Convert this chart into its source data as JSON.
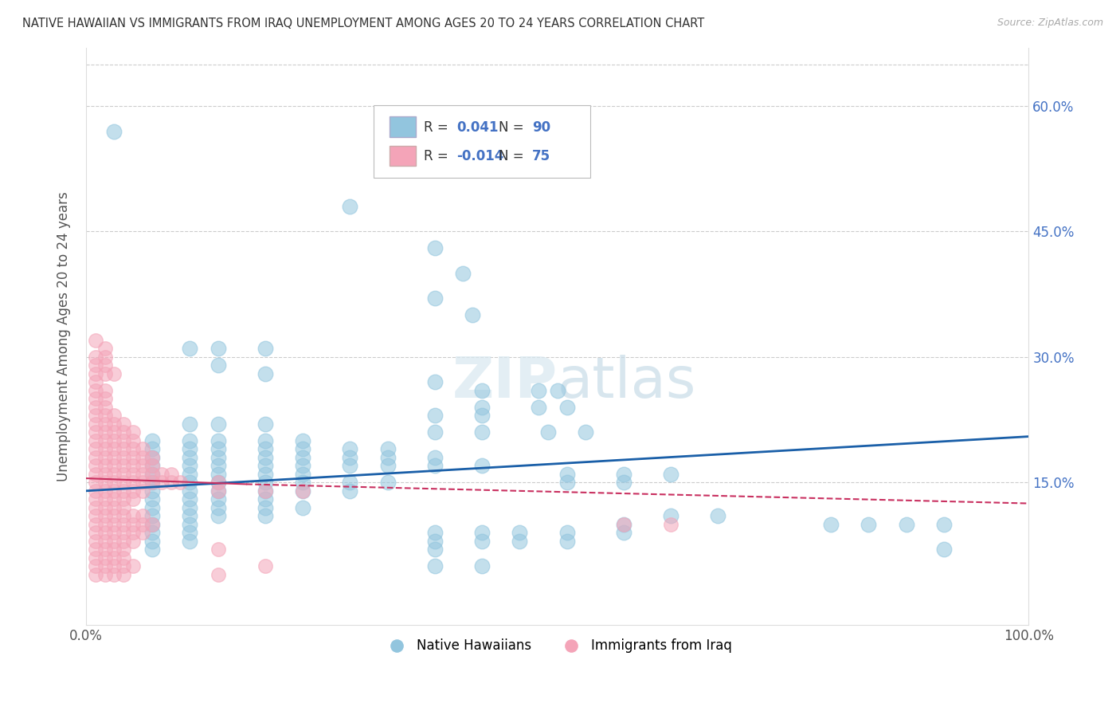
{
  "title": "NATIVE HAWAIIAN VS IMMIGRANTS FROM IRAQ UNEMPLOYMENT AMONG AGES 20 TO 24 YEARS CORRELATION CHART",
  "source": "Source: ZipAtlas.com",
  "ylabel": "Unemployment Among Ages 20 to 24 years",
  "xlim": [
    0,
    100
  ],
  "ylim": [
    -2,
    67
  ],
  "xticks": [
    0,
    20,
    40,
    60,
    80,
    100
  ],
  "xticklabels": [
    "0.0%",
    "",
    "",
    "",
    "",
    "100.0%"
  ],
  "yticks": [
    0,
    15,
    30,
    45,
    60
  ],
  "yticklabels_right": [
    "",
    "15.0%",
    "30.0%",
    "45.0%",
    "60.0%"
  ],
  "blue_R": "0.041",
  "blue_N": "90",
  "pink_R": "-0.014",
  "pink_N": "75",
  "blue_color": "#92c5de",
  "pink_color": "#f4a4b8",
  "blue_line_color": "#1a5fa8",
  "pink_line_color": "#c93060",
  "legend_label_blue": "Native Hawaiians",
  "legend_label_pink": "Immigrants from Iraq",
  "blue_trend": [
    0,
    100,
    14.0,
    20.5
  ],
  "pink_trend_solid": [
    0,
    17,
    15.5,
    14.8
  ],
  "pink_trend_dashed": [
    17,
    100,
    14.8,
    12.5
  ],
  "blue_dots": [
    [
      3,
      57
    ],
    [
      28,
      48
    ],
    [
      37,
      43
    ],
    [
      40,
      40
    ],
    [
      37,
      37
    ],
    [
      41,
      35
    ],
    [
      11,
      31
    ],
    [
      14,
      31
    ],
    [
      19,
      31
    ],
    [
      14,
      29
    ],
    [
      19,
      28
    ],
    [
      37,
      27
    ],
    [
      42,
      26
    ],
    [
      48,
      26
    ],
    [
      50,
      26
    ],
    [
      42,
      24
    ],
    [
      48,
      24
    ],
    [
      51,
      24
    ],
    [
      37,
      23
    ],
    [
      42,
      23
    ],
    [
      11,
      22
    ],
    [
      14,
      22
    ],
    [
      19,
      22
    ],
    [
      37,
      21
    ],
    [
      42,
      21
    ],
    [
      49,
      21
    ],
    [
      53,
      21
    ],
    [
      7,
      20
    ],
    [
      11,
      20
    ],
    [
      14,
      20
    ],
    [
      19,
      20
    ],
    [
      23,
      20
    ],
    [
      7,
      19
    ],
    [
      11,
      19
    ],
    [
      14,
      19
    ],
    [
      19,
      19
    ],
    [
      23,
      19
    ],
    [
      28,
      19
    ],
    [
      32,
      19
    ],
    [
      7,
      18
    ],
    [
      11,
      18
    ],
    [
      14,
      18
    ],
    [
      19,
      18
    ],
    [
      23,
      18
    ],
    [
      28,
      18
    ],
    [
      32,
      18
    ],
    [
      37,
      18
    ],
    [
      7,
      17
    ],
    [
      11,
      17
    ],
    [
      14,
      17
    ],
    [
      19,
      17
    ],
    [
      23,
      17
    ],
    [
      28,
      17
    ],
    [
      32,
      17
    ],
    [
      37,
      17
    ],
    [
      42,
      17
    ],
    [
      7,
      16
    ],
    [
      11,
      16
    ],
    [
      14,
      16
    ],
    [
      19,
      16
    ],
    [
      23,
      16
    ],
    [
      51,
      16
    ],
    [
      57,
      16
    ],
    [
      62,
      16
    ],
    [
      7,
      15
    ],
    [
      11,
      15
    ],
    [
      14,
      15
    ],
    [
      19,
      15
    ],
    [
      23,
      15
    ],
    [
      28,
      15
    ],
    [
      32,
      15
    ],
    [
      51,
      15
    ],
    [
      57,
      15
    ],
    [
      7,
      14
    ],
    [
      11,
      14
    ],
    [
      14,
      14
    ],
    [
      19,
      14
    ],
    [
      23,
      14
    ],
    [
      28,
      14
    ],
    [
      7,
      13
    ],
    [
      11,
      13
    ],
    [
      14,
      13
    ],
    [
      19,
      13
    ],
    [
      7,
      12
    ],
    [
      11,
      12
    ],
    [
      14,
      12
    ],
    [
      19,
      12
    ],
    [
      23,
      12
    ],
    [
      7,
      11
    ],
    [
      11,
      11
    ],
    [
      14,
      11
    ],
    [
      19,
      11
    ],
    [
      62,
      11
    ],
    [
      67,
      11
    ],
    [
      7,
      10
    ],
    [
      11,
      10
    ],
    [
      57,
      10
    ],
    [
      79,
      10
    ],
    [
      83,
      10
    ],
    [
      87,
      10
    ],
    [
      91,
      10
    ],
    [
      7,
      9
    ],
    [
      11,
      9
    ],
    [
      37,
      9
    ],
    [
      42,
      9
    ],
    [
      46,
      9
    ],
    [
      51,
      9
    ],
    [
      57,
      9
    ],
    [
      7,
      8
    ],
    [
      11,
      8
    ],
    [
      37,
      8
    ],
    [
      42,
      8
    ],
    [
      46,
      8
    ],
    [
      51,
      8
    ],
    [
      7,
      7
    ],
    [
      37,
      7
    ],
    [
      91,
      7
    ],
    [
      37,
      5
    ],
    [
      42,
      5
    ]
  ],
  "pink_dots": [
    [
      1,
      32
    ],
    [
      2,
      31
    ],
    [
      1,
      30
    ],
    [
      2,
      30
    ],
    [
      1,
      29
    ],
    [
      2,
      29
    ],
    [
      1,
      28
    ],
    [
      2,
      28
    ],
    [
      1,
      27
    ],
    [
      1,
      26
    ],
    [
      2,
      26
    ],
    [
      1,
      25
    ],
    [
      2,
      25
    ],
    [
      1,
      24
    ],
    [
      2,
      24
    ],
    [
      3,
      28
    ],
    [
      1,
      23
    ],
    [
      2,
      23
    ],
    [
      3,
      23
    ],
    [
      1,
      22
    ],
    [
      2,
      22
    ],
    [
      3,
      22
    ],
    [
      4,
      22
    ],
    [
      1,
      21
    ],
    [
      2,
      21
    ],
    [
      3,
      21
    ],
    [
      4,
      21
    ],
    [
      5,
      21
    ],
    [
      1,
      20
    ],
    [
      2,
      20
    ],
    [
      3,
      20
    ],
    [
      4,
      20
    ],
    [
      5,
      20
    ],
    [
      1,
      19
    ],
    [
      2,
      19
    ],
    [
      3,
      19
    ],
    [
      4,
      19
    ],
    [
      5,
      19
    ],
    [
      6,
      19
    ],
    [
      1,
      18
    ],
    [
      2,
      18
    ],
    [
      3,
      18
    ],
    [
      4,
      18
    ],
    [
      5,
      18
    ],
    [
      6,
      18
    ],
    [
      7,
      18
    ],
    [
      1,
      17
    ],
    [
      2,
      17
    ],
    [
      3,
      17
    ],
    [
      4,
      17
    ],
    [
      5,
      17
    ],
    [
      6,
      17
    ],
    [
      7,
      17
    ],
    [
      1,
      16
    ],
    [
      2,
      16
    ],
    [
      3,
      16
    ],
    [
      4,
      16
    ],
    [
      5,
      16
    ],
    [
      6,
      16
    ],
    [
      7,
      16
    ],
    [
      8,
      16
    ],
    [
      9,
      16
    ],
    [
      1,
      15
    ],
    [
      2,
      15
    ],
    [
      3,
      15
    ],
    [
      4,
      15
    ],
    [
      5,
      15
    ],
    [
      6,
      15
    ],
    [
      7,
      15
    ],
    [
      8,
      15
    ],
    [
      9,
      15
    ],
    [
      10,
      15
    ],
    [
      14,
      15
    ],
    [
      1,
      14
    ],
    [
      2,
      14
    ],
    [
      3,
      14
    ],
    [
      4,
      14
    ],
    [
      5,
      14
    ],
    [
      6,
      14
    ],
    [
      14,
      14
    ],
    [
      19,
      14
    ],
    [
      23,
      14
    ],
    [
      1,
      13
    ],
    [
      2,
      13
    ],
    [
      3,
      13
    ],
    [
      4,
      13
    ],
    [
      5,
      13
    ],
    [
      1,
      12
    ],
    [
      2,
      12
    ],
    [
      3,
      12
    ],
    [
      4,
      12
    ],
    [
      1,
      11
    ],
    [
      2,
      11
    ],
    [
      3,
      11
    ],
    [
      4,
      11
    ],
    [
      5,
      11
    ],
    [
      6,
      11
    ],
    [
      1,
      10
    ],
    [
      2,
      10
    ],
    [
      3,
      10
    ],
    [
      4,
      10
    ],
    [
      5,
      10
    ],
    [
      6,
      10
    ],
    [
      7,
      10
    ],
    [
      1,
      9
    ],
    [
      2,
      9
    ],
    [
      3,
      9
    ],
    [
      4,
      9
    ],
    [
      5,
      9
    ],
    [
      6,
      9
    ],
    [
      1,
      8
    ],
    [
      2,
      8
    ],
    [
      3,
      8
    ],
    [
      4,
      8
    ],
    [
      5,
      8
    ],
    [
      1,
      7
    ],
    [
      2,
      7
    ],
    [
      3,
      7
    ],
    [
      4,
      7
    ],
    [
      14,
      7
    ],
    [
      1,
      6
    ],
    [
      2,
      6
    ],
    [
      3,
      6
    ],
    [
      4,
      6
    ],
    [
      1,
      5
    ],
    [
      2,
      5
    ],
    [
      3,
      5
    ],
    [
      4,
      5
    ],
    [
      5,
      5
    ],
    [
      1,
      4
    ],
    [
      2,
      4
    ],
    [
      3,
      4
    ],
    [
      4,
      4
    ],
    [
      14,
      4
    ],
    [
      19,
      5
    ],
    [
      57,
      10
    ],
    [
      62,
      10
    ]
  ]
}
